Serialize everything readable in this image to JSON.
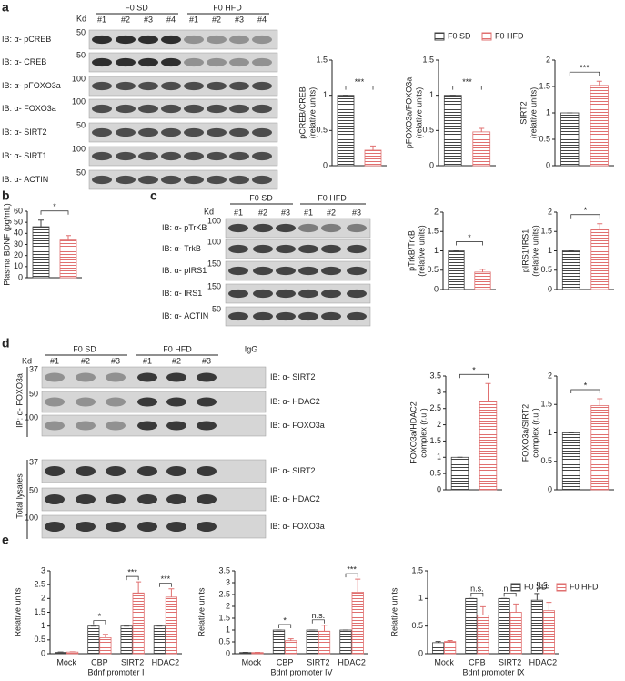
{
  "panels": [
    "a",
    "b",
    "c",
    "d",
    "e"
  ],
  "blots": {
    "a": {
      "kd": "Kd",
      "groups": [
        "F0 SD",
        "F0 HFD"
      ],
      "lanes": [
        "#1",
        "#2",
        "#3",
        "#4",
        "#1",
        "#2",
        "#3",
        "#4"
      ],
      "rows": [
        {
          "label": "IB: α- pCREB",
          "kd": "50"
        },
        {
          "label": "IB: α- CREB",
          "kd": "50"
        },
        {
          "label": "IB: α- pFOXO3a",
          "kd": "100"
        },
        {
          "label": "IB: α- FOXO3a",
          "kd": "100"
        },
        {
          "label": "IB: α- SIRT2",
          "kd": "50"
        },
        {
          "label": "IB: α- SIRT1",
          "kd": "100"
        },
        {
          "label": "IB: α- ACTIN",
          "kd": "50"
        }
      ]
    },
    "c": {
      "kd": "Kd",
      "groups": [
        "F0 SD",
        "F0 HFD"
      ],
      "lanes": [
        "#1",
        "#2",
        "#3",
        "#1",
        "#2",
        "#3"
      ],
      "rows": [
        {
          "label": "IB: α- pTrKB",
          "kd": "100"
        },
        {
          "label": "IB: α- TrkB",
          "kd": "100"
        },
        {
          "label": "IB: α- pIRS1",
          "kd": "150"
        },
        {
          "label": "IB: α- IRS1",
          "kd": "150"
        },
        {
          "label": "IB: α- ACTIN",
          "kd": "50"
        }
      ]
    },
    "d": {
      "kd": "Kd",
      "groups": [
        "F0 SD",
        "F0 HFD"
      ],
      "igg": "IgG",
      "lanes": [
        "#1",
        "#2",
        "#3",
        "#1",
        "#2",
        "#3"
      ],
      "ip_label": "IP: α- FOXO3a",
      "lysate_label": "Total lysates",
      "ip_rows": [
        {
          "label": "IB: α- SIRT2",
          "kd": "37"
        },
        {
          "label": "IB: α- HDAC2",
          "kd": "50"
        },
        {
          "label": "IB: α- FOXO3a",
          "kd": "100"
        }
      ],
      "lysate_rows": [
        {
          "label": "IB: α- SIRT2",
          "kd": "37"
        },
        {
          "label": "IB: α- HDAC2",
          "kd": "50"
        },
        {
          "label": "IB: α- FOXO3a",
          "kd": "100"
        }
      ]
    }
  },
  "chart_data": [
    {
      "type": "bar",
      "ylabel": [
        "pCREB/CREB",
        "(relative units)"
      ],
      "values": [
        1,
        0.22
      ],
      "errors": [
        0,
        0.06
      ],
      "colors": [
        "#444444",
        "#e07070"
      ],
      "ylim": [
        0,
        1.5
      ],
      "yticks": [
        0,
        0.5,
        1,
        1.5
      ],
      "sig": "***"
    },
    {
      "type": "bar",
      "ylabel": [
        "pFOXO3a/FOXO3a",
        "(relative units)"
      ],
      "values": [
        1,
        0.48
      ],
      "errors": [
        0,
        0.05
      ],
      "colors": [
        "#444444",
        "#e07070"
      ],
      "ylim": [
        0,
        1.5
      ],
      "yticks": [
        0,
        0.5,
        1,
        1.5
      ],
      "sig": "***",
      "legend": [
        "F0 SD",
        "F0 HFD"
      ]
    },
    {
      "type": "bar",
      "ylabel": [
        "SIRT2",
        "(relative units)"
      ],
      "values": [
        1,
        1.52
      ],
      "errors": [
        0,
        0.08
      ],
      "colors": [
        "#444444",
        "#e07070"
      ],
      "ylim": [
        0,
        2
      ],
      "yticks": [
        0,
        0.5,
        1,
        1.5,
        2
      ],
      "sig": "***"
    },
    {
      "type": "bar",
      "ylabel": [
        "Plasma BDNF (pg/mL)"
      ],
      "values": [
        46,
        34
      ],
      "errors": [
        6,
        4
      ],
      "colors": [
        "#444444",
        "#e07070"
      ],
      "ylim": [
        0,
        60
      ],
      "yticks": [
        0,
        10,
        20,
        30,
        40,
        50,
        60
      ],
      "sig": "*"
    },
    {
      "type": "bar",
      "ylabel": [
        "pTrkB/TrkB",
        "(relative units)"
      ],
      "values": [
        1,
        0.45
      ],
      "errors": [
        0,
        0.07
      ],
      "colors": [
        "#444444",
        "#e07070"
      ],
      "ylim": [
        0,
        2
      ],
      "yticks": [
        0,
        0.5,
        1,
        1.5,
        2
      ],
      "sig": "*"
    },
    {
      "type": "bar",
      "ylabel": [
        "pIRS1/IRS1",
        "(relative units)"
      ],
      "values": [
        1,
        1.55
      ],
      "errors": [
        0,
        0.15
      ],
      "colors": [
        "#444444",
        "#e07070"
      ],
      "ylim": [
        0,
        2
      ],
      "yticks": [
        0,
        0.5,
        1,
        1.5,
        2
      ],
      "sig": "*"
    },
    {
      "type": "bar",
      "ylabel": [
        "FOXO3a/HDAC2",
        "complex (r.u.)"
      ],
      "values": [
        1,
        2.72
      ],
      "errors": [
        0,
        0.55
      ],
      "colors": [
        "#444444",
        "#e07070"
      ],
      "ylim": [
        0,
        3.5
      ],
      "yticks": [
        0,
        0.5,
        1,
        1.5,
        2,
        2.5,
        3,
        3.5
      ],
      "sig": "*"
    },
    {
      "type": "bar",
      "ylabel": [
        "FOXO3a/SIRT2",
        "complex (r.u.)"
      ],
      "values": [
        1,
        1.48
      ],
      "errors": [
        0,
        0.12
      ],
      "colors": [
        "#444444",
        "#e07070"
      ],
      "ylim": [
        0,
        2
      ],
      "yticks": [
        0,
        0.5,
        1,
        1.5,
        2
      ],
      "sig": "*"
    },
    {
      "type": "bar",
      "ylabel": [
        "Relative units"
      ],
      "xlabel": "Bdnf promoter I",
      "categories": [
        "Mock",
        "CBP",
        "SIRT2",
        "HDAC2"
      ],
      "series": [
        {
          "color": "#444444",
          "values": [
            0.05,
            1,
            1,
            1
          ],
          "errors": [
            0.01,
            0,
            0,
            0
          ]
        },
        {
          "color": "#e07070",
          "values": [
            0.06,
            0.58,
            2.2,
            2.05
          ],
          "errors": [
            0.01,
            0.12,
            0.4,
            0.3
          ]
        }
      ],
      "ylim": [
        0,
        3
      ],
      "yticks": [
        0,
        0.5,
        1,
        1.5,
        2,
        2.5,
        3
      ],
      "sig": [
        null,
        "*",
        "***",
        "***"
      ]
    },
    {
      "type": "bar",
      "ylabel": [
        "Relative units"
      ],
      "xlabel": "Bdnf promoter IV",
      "categories": [
        "Mock",
        "CBP",
        "SIRT2",
        "HDAC2"
      ],
      "series": [
        {
          "color": "#444444",
          "values": [
            0.05,
            1,
            1,
            1
          ],
          "errors": [
            0.01,
            0,
            0,
            0
          ]
        },
        {
          "color": "#e07070",
          "values": [
            0.05,
            0.55,
            0.95,
            2.6
          ],
          "errors": [
            0.01,
            0.08,
            0.25,
            0.55
          ]
        }
      ],
      "ylim": [
        0,
        3.5
      ],
      "yticks": [
        0,
        0.5,
        1,
        1.5,
        2,
        2.5,
        3,
        3.5
      ],
      "sig": [
        null,
        "*",
        "n.s.",
        "***"
      ]
    },
    {
      "type": "bar",
      "ylabel": [
        "Relative units"
      ],
      "xlabel": "Bdnf promoter IX",
      "categories": [
        "Mock",
        "CPB",
        "SIRT2",
        "HDAC2"
      ],
      "series": [
        {
          "name": "F0 SD",
          "color": "#444444",
          "values": [
            0.2,
            1,
            1,
            0.97
          ],
          "errors": [
            0.02,
            0,
            0,
            0.12
          ]
        },
        {
          "name": "F0 HFD",
          "color": "#e07070",
          "values": [
            0.22,
            0.7,
            0.75,
            0.78
          ],
          "errors": [
            0.02,
            0.15,
            0.15,
            0.15
          ]
        }
      ],
      "ylim": [
        0,
        1.5
      ],
      "yticks": [
        0,
        0.5,
        1,
        1.5
      ],
      "sig": [
        null,
        "n.s.",
        "n.s.",
        "n.s."
      ]
    }
  ]
}
